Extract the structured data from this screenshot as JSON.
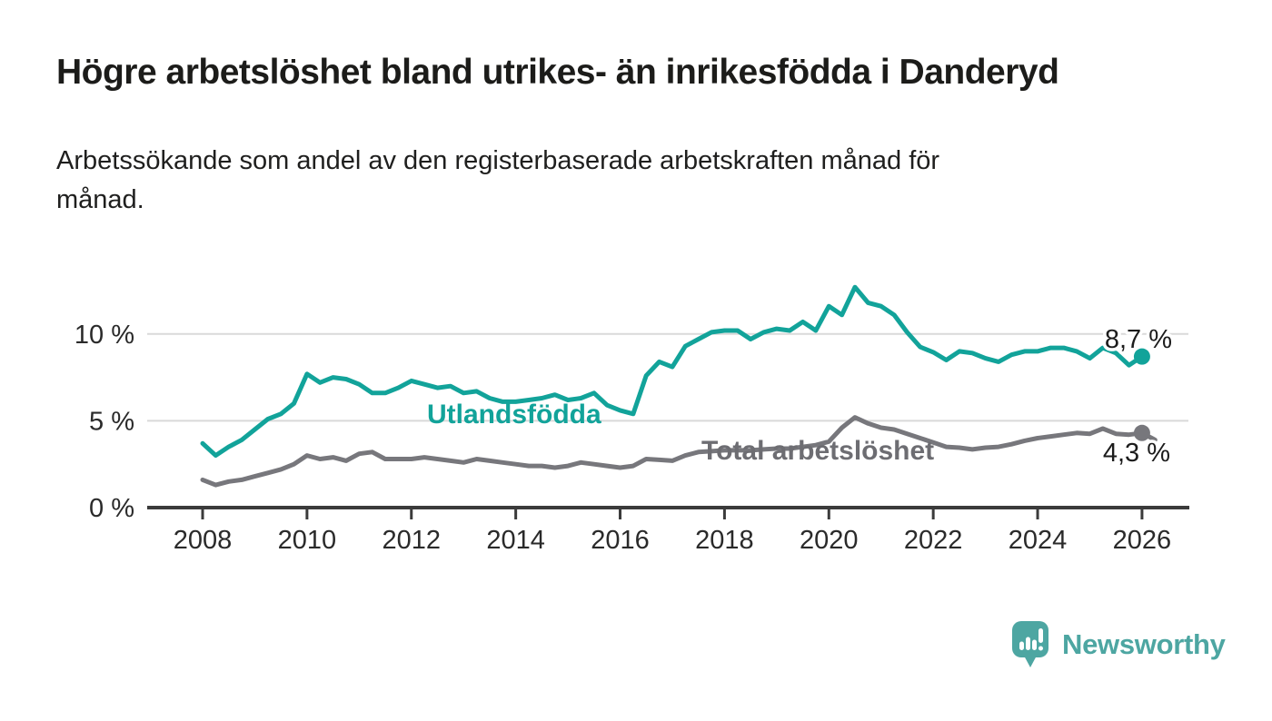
{
  "header": {
    "title": "Högre arbetslöshet bland utrikes- än inrikesfödda i Danderyd",
    "subtitle": "Arbetssökande som andel av den registerbaserade arbetskraften månad för månad.",
    "subtitle_lines": [
      "Arbetssökande som andel av den registerbaserade arbetskraften månad för",
      "månad."
    ]
  },
  "branding": {
    "logo_text": "Newsworthy",
    "logo_color": "#4da6a2",
    "logo_icon": "speech-bubble-bar-chart-exclamation"
  },
  "colors": {
    "utlandsfodda_line": "#12a39a",
    "total_line": "#77777c",
    "total_label": "#6d6d72",
    "grid": "#d9d9d9",
    "axis": "#3b3b3b",
    "text": "#1c1c1a"
  },
  "chart_data": {
    "type": "line",
    "x_unit": "year",
    "x_axis": {
      "ticks": [
        2008,
        2010,
        2012,
        2014,
        2016,
        2018,
        2020,
        2022,
        2024,
        2026
      ],
      "tick_labels": [
        "2008",
        "2010",
        "2012",
        "2014",
        "2016",
        "2018",
        "2020",
        "2022",
        "2024",
        "2026"
      ],
      "range": [
        2007.5,
        2026.9
      ]
    },
    "y_axis": {
      "ticks": [
        0,
        5,
        10
      ],
      "tick_labels": [
        "0 %",
        "5 %",
        "10 %"
      ],
      "range": [
        0,
        13.5
      ],
      "grid": true
    },
    "series": [
      {
        "name": "Utlandsfödda",
        "color": "#12a39a",
        "x_start": 2008,
        "x_step": 0.25,
        "end_label": "8,7 %",
        "end_value": 8.7,
        "dot_offset_from_end": 0,
        "values": [
          3.7,
          3.0,
          3.5,
          3.9,
          4.5,
          5.1,
          5.4,
          6.0,
          7.7,
          7.2,
          7.5,
          7.4,
          7.1,
          6.6,
          6.6,
          6.9,
          7.3,
          7.1,
          6.9,
          7.0,
          6.6,
          6.7,
          6.3,
          6.1,
          6.1,
          6.2,
          6.3,
          6.5,
          6.2,
          6.3,
          6.6,
          5.9,
          5.6,
          5.4,
          7.6,
          8.4,
          8.1,
          9.3,
          9.7,
          10.1,
          10.2,
          10.2,
          9.7,
          10.1,
          10.3,
          10.2,
          10.7,
          10.2,
          11.6,
          11.1,
          12.7,
          11.8,
          11.6,
          11.1,
          10.1,
          9.25,
          8.95,
          8.5,
          9.0,
          8.9,
          8.6,
          8.4,
          8.8,
          9.0,
          9.0,
          9.2,
          9.2,
          9.0,
          8.6,
          9.2,
          8.9,
          8.2,
          8.7
        ]
      },
      {
        "name": "Total arbetslöshet",
        "color": "#77777c",
        "x_start": 2008,
        "x_step": 0.25,
        "end_label": "4,3 %",
        "end_value": 4.3,
        "dot_offset_from_end": 1,
        "values": [
          1.6,
          1.3,
          1.5,
          1.6,
          1.8,
          2.0,
          2.2,
          2.5,
          3.0,
          2.8,
          2.9,
          2.7,
          3.1,
          3.2,
          2.8,
          2.8,
          2.8,
          2.9,
          2.8,
          2.7,
          2.6,
          2.8,
          2.7,
          2.6,
          2.5,
          2.4,
          2.4,
          2.3,
          2.4,
          2.6,
          2.5,
          2.4,
          2.3,
          2.4,
          2.8,
          2.75,
          2.7,
          3.0,
          3.2,
          3.25,
          3.3,
          3.3,
          3.3,
          3.35,
          3.4,
          3.4,
          3.5,
          3.6,
          3.8,
          4.6,
          5.2,
          4.85,
          4.6,
          4.5,
          4.25,
          4.0,
          3.75,
          3.5,
          3.45,
          3.35,
          3.45,
          3.5,
          3.65,
          3.85,
          4.0,
          4.1,
          4.2,
          4.3,
          4.25,
          4.55,
          4.25,
          4.2,
          4.3,
          3.9
        ]
      }
    ]
  }
}
